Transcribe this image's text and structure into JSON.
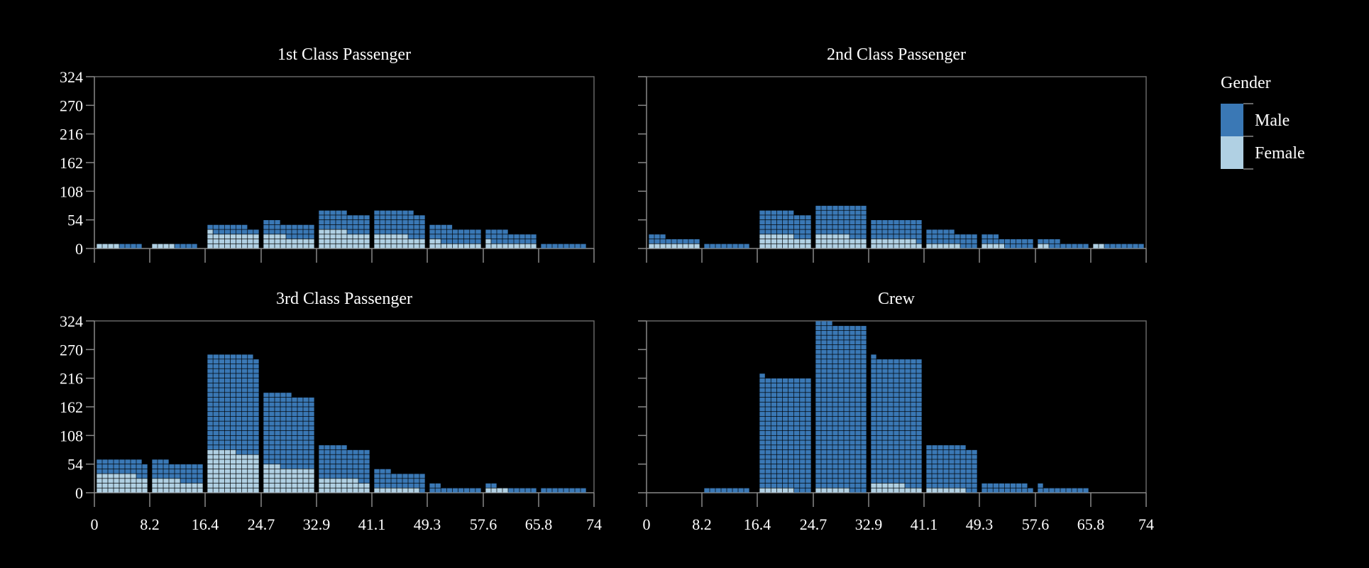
{
  "chart_data": {
    "type": "bar",
    "subtype": "waffle-histogram-small-multiples",
    "facets": [
      "1st Class Passenger",
      "2nd Class Passenger",
      "3rd Class Passenger",
      "Crew"
    ],
    "x": {
      "ticks": [
        "0",
        "8.2",
        "16.4",
        "24.7",
        "32.9",
        "41.1",
        "49.3",
        "57.6",
        "65.8",
        "74"
      ],
      "range": [
        0,
        74
      ],
      "bins": [
        [
          0,
          8.2
        ],
        [
          8.2,
          16.4
        ],
        [
          16.4,
          24.7
        ],
        [
          24.7,
          32.9
        ],
        [
          32.9,
          41.1
        ],
        [
          41.1,
          49.3
        ],
        [
          49.3,
          57.6
        ],
        [
          57.6,
          65.8
        ],
        [
          65.8,
          74
        ]
      ]
    },
    "y": {
      "ticks": [
        "0",
        "54",
        "108",
        "162",
        "216",
        "270",
        "324"
      ],
      "range": [
        0,
        324
      ]
    },
    "legend": {
      "title": "Gender",
      "position": "right",
      "entries": [
        {
          "name": "Male",
          "color": "#3a78b5"
        },
        {
          "name": "Female",
          "color": "#b0d0e3"
        }
      ]
    },
    "panels": [
      {
        "title": "1st Class Passenger",
        "male": [
          4,
          4,
          15,
          26,
          36,
          46,
          29,
          21,
          8
        ],
        "female": [
          4,
          4,
          28,
          22,
          32,
          24,
          11,
          10,
          0
        ]
      },
      {
        "title": "2nd Class Passenger",
        "male": [
          12,
          8,
          45,
          57,
          37,
          26,
          17,
          11,
          7
        ],
        "female": [
          9,
          0,
          24,
          24,
          17,
          6,
          4,
          2,
          2
        ]
      },
      {
        "title": "3rd Class Passenger",
        "male": [
          28,
          34,
          183,
          137,
          61,
          31,
          11,
          7,
          8
        ],
        "female": [
          34,
          23,
          77,
          48,
          25,
          8,
          0,
          4,
          0
        ]
      },
      {
        "title": "Crew",
        "male": [
          0,
          8,
          211,
          312,
          238,
          81,
          17,
          10,
          0
        ],
        "female": [
          0,
          0,
          6,
          6,
          15,
          7,
          0,
          0,
          0
        ]
      }
    ]
  }
}
